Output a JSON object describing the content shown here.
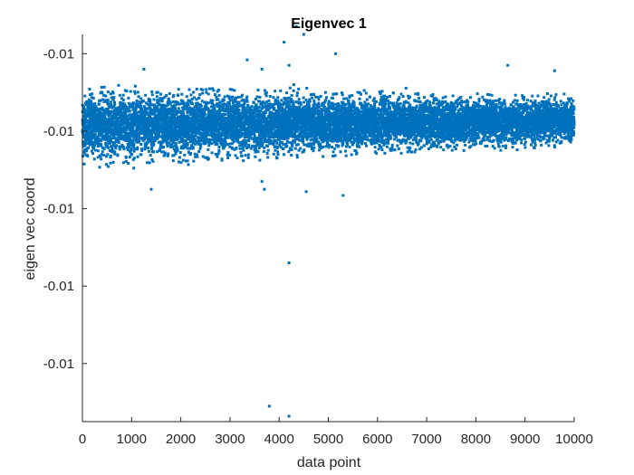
{
  "chart_data": {
    "type": "scatter",
    "title": "Eigenvec 1",
    "xlabel": "data point",
    "ylabel": "eigen vec coord",
    "xlim": [
      0,
      10000
    ],
    "ylim": [
      -0.01425,
      -0.00925
    ],
    "x_ticks": [
      0,
      1000,
      2000,
      3000,
      4000,
      5000,
      6000,
      7000,
      8000,
      9000,
      10000
    ],
    "x_tick_labels": [
      "0",
      "1000",
      "2000",
      "3000",
      "4000",
      "5000",
      "6000",
      "7000",
      "8000",
      "9000",
      "10000"
    ],
    "y_ticks": [
      -0.0095,
      -0.0105,
      -0.0115,
      -0.0125,
      -0.0135
    ],
    "y_tick_labels": [
      "-0.01",
      "-0.01",
      "-0.01",
      "-0.01",
      "-0.01"
    ],
    "grid": false,
    "marker_color": "#0072BD",
    "n_points": 10000,
    "band": {
      "center_start": -0.01043,
      "center_end": -0.01037,
      "spread_start": 0.00019,
      "spread_end": 0.00012
    },
    "outliers": [
      {
        "x": 4100,
        "y": -0.00935
      },
      {
        "x": 4350,
        "y": -0.00915
      },
      {
        "x": 4500,
        "y": -0.00925
      },
      {
        "x": 5150,
        "y": -0.0095
      },
      {
        "x": 3350,
        "y": -0.00958
      },
      {
        "x": 3650,
        "y": -0.0097
      },
      {
        "x": 4200,
        "y": -0.00965
      },
      {
        "x": 8650,
        "y": -0.00965
      },
      {
        "x": 1250,
        "y": -0.0097
      },
      {
        "x": 9600,
        "y": -0.00972
      },
      {
        "x": 4300,
        "y": -0.0099
      },
      {
        "x": 3650,
        "y": -0.01115
      },
      {
        "x": 3700,
        "y": -0.01125
      },
      {
        "x": 1400,
        "y": -0.01125
      },
      {
        "x": 4550,
        "y": -0.01128
      },
      {
        "x": 5300,
        "y": -0.01133
      },
      {
        "x": 4200,
        "y": -0.0122
      },
      {
        "x": 3800,
        "y": -0.01405
      },
      {
        "x": 4200,
        "y": -0.01418
      }
    ]
  }
}
